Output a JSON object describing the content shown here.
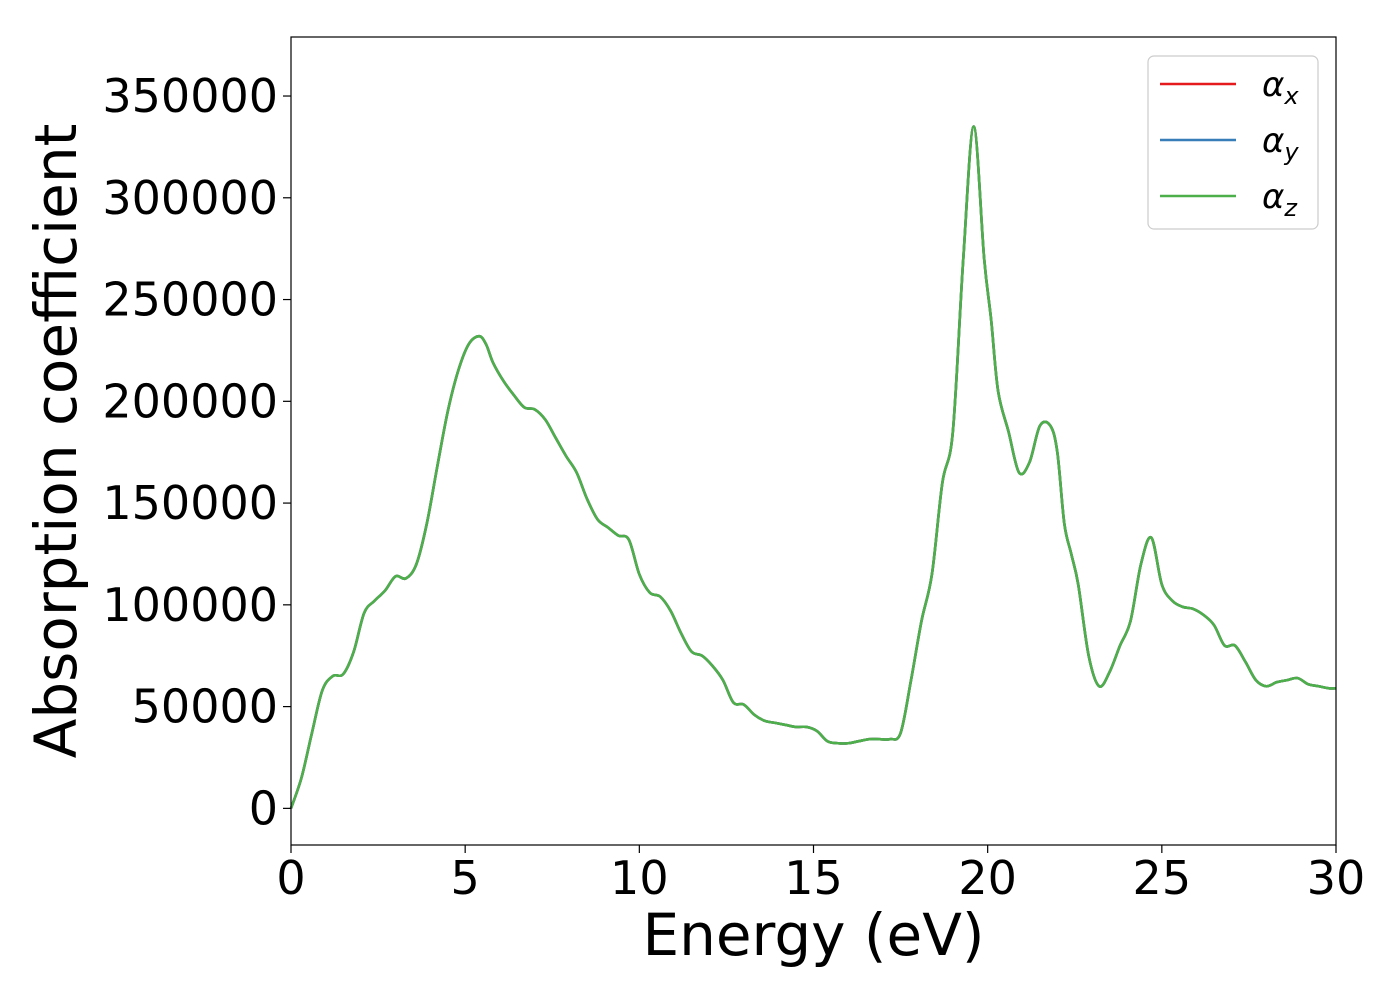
{
  "chart_data": {
    "type": "line",
    "title": "",
    "xlabel": "Energy (eV)",
    "ylabel": "Absorption coefficient",
    "xlim": [
      0,
      30
    ],
    "ylim": [
      -18000,
      379000
    ],
    "xticks": [
      "0",
      "5",
      "10",
      "15",
      "20",
      "25",
      "30"
    ],
    "yticks": [
      "0",
      "50000",
      "100000",
      "150000",
      "200000",
      "250000",
      "300000",
      "350000"
    ],
    "grid": false,
    "legend_position": "top-right",
    "legend": [
      {
        "symbol": "α",
        "subscript": "x",
        "color": "#e41a1c"
      },
      {
        "symbol": "α",
        "subscript": "y",
        "color": "#377eb8"
      },
      {
        "symbol": "α",
        "subscript": "z",
        "color": "#4daf4a"
      }
    ],
    "x": [
      0,
      0.3,
      0.6,
      0.9,
      1.2,
      1.5,
      1.8,
      2.1,
      2.4,
      2.7,
      3.0,
      3.3,
      3.6,
      3.9,
      4.2,
      4.5,
      4.8,
      5.1,
      5.4,
      5.6,
      5.8,
      6.1,
      6.4,
      6.7,
      7.0,
      7.3,
      7.6,
      7.9,
      8.2,
      8.5,
      8.8,
      9.1,
      9.4,
      9.7,
      10.0,
      10.3,
      10.6,
      10.9,
      11.2,
      11.5,
      11.8,
      12.1,
      12.4,
      12.7,
      13.0,
      13.3,
      13.6,
      13.9,
      14.2,
      14.5,
      14.8,
      15.1,
      15.4,
      15.7,
      16.0,
      16.3,
      16.6,
      16.9,
      17.2,
      17.5,
      17.8,
      18.1,
      18.4,
      18.7,
      19.0,
      19.3,
      19.6,
      19.9,
      20.1,
      20.3,
      20.6,
      20.9,
      21.2,
      21.5,
      21.8,
      22.0,
      22.2,
      22.4,
      22.6,
      22.9,
      23.2,
      23.5,
      23.8,
      24.1,
      24.4,
      24.7,
      25.0,
      25.3,
      25.6,
      25.9,
      26.2,
      26.5,
      26.8,
      27.1,
      27.4,
      27.7,
      28.0,
      28.3,
      28.6,
      28.9,
      29.2,
      29.5,
      29.8,
      30.0
    ],
    "series": [
      {
        "name": "α_x",
        "color": "#e41a1c",
        "values": [
          0,
          15000,
          37000,
          58000,
          65000,
          66000,
          77000,
          96000,
          102000,
          107000,
          114000,
          113000,
          120000,
          140000,
          168000,
          195000,
          215000,
          228000,
          232000,
          228000,
          219000,
          210000,
          203000,
          197000,
          196000,
          191000,
          182000,
          173000,
          165000,
          152000,
          142000,
          138000,
          134000,
          132000,
          115000,
          106000,
          104000,
          97000,
          86000,
          77000,
          75000,
          70000,
          63000,
          52000,
          51000,
          46000,
          43000,
          42000,
          41000,
          40000,
          40000,
          38000,
          33000,
          32000,
          32000,
          33000,
          34000,
          34000,
          34000,
          37000,
          63000,
          92000,
          115000,
          160000,
          185000,
          270000,
          335000,
          270000,
          240000,
          205000,
          185000,
          165000,
          170000,
          188000,
          188000,
          175000,
          140000,
          125000,
          110000,
          75000,
          60000,
          67000,
          80000,
          92000,
          120000,
          133000,
          110000,
          102000,
          99000,
          98000,
          95000,
          90000,
          80000,
          80000,
          72000,
          63000,
          60000,
          62000,
          63000,
          64000,
          61000,
          60000,
          59000,
          59000
        ]
      },
      {
        "name": "α_y",
        "color": "#377eb8",
        "values": [
          0,
          15000,
          37000,
          58000,
          65000,
          66000,
          77000,
          96000,
          102000,
          107000,
          114000,
          113000,
          120000,
          140000,
          168000,
          195000,
          215000,
          228000,
          232000,
          228000,
          219000,
          210000,
          203000,
          197000,
          196000,
          191000,
          182000,
          173000,
          165000,
          152000,
          142000,
          138000,
          134000,
          132000,
          115000,
          106000,
          104000,
          97000,
          86000,
          77000,
          75000,
          70000,
          63000,
          52000,
          51000,
          46000,
          43000,
          42000,
          41000,
          40000,
          40000,
          38000,
          33000,
          32000,
          32000,
          33000,
          34000,
          34000,
          34000,
          37000,
          63000,
          92000,
          115000,
          160000,
          185000,
          270000,
          335000,
          270000,
          240000,
          205000,
          185000,
          165000,
          170000,
          188000,
          188000,
          175000,
          140000,
          125000,
          110000,
          75000,
          60000,
          67000,
          80000,
          92000,
          120000,
          133000,
          110000,
          102000,
          99000,
          98000,
          95000,
          90000,
          80000,
          80000,
          72000,
          63000,
          60000,
          62000,
          63000,
          64000,
          61000,
          60000,
          59000,
          59000
        ]
      },
      {
        "name": "α_z",
        "color": "#4daf4a",
        "values": [
          0,
          15000,
          37000,
          58000,
          65000,
          66000,
          77000,
          96000,
          102000,
          107000,
          114000,
          113000,
          120000,
          140000,
          168000,
          195000,
          215000,
          228000,
          232000,
          228000,
          219000,
          210000,
          203000,
          197000,
          196000,
          191000,
          182000,
          173000,
          165000,
          152000,
          142000,
          138000,
          134000,
          132000,
          115000,
          106000,
          104000,
          97000,
          86000,
          77000,
          75000,
          70000,
          63000,
          52000,
          51000,
          46000,
          43000,
          42000,
          41000,
          40000,
          40000,
          38000,
          33000,
          32000,
          32000,
          33000,
          34000,
          34000,
          34000,
          37000,
          63000,
          92000,
          115000,
          160000,
          185000,
          270000,
          335000,
          270000,
          240000,
          205000,
          185000,
          165000,
          170000,
          188000,
          188000,
          175000,
          140000,
          125000,
          110000,
          75000,
          60000,
          67000,
          80000,
          92000,
          120000,
          133000,
          110000,
          102000,
          99000,
          98000,
          95000,
          90000,
          80000,
          80000,
          72000,
          63000,
          60000,
          62000,
          63000,
          64000,
          61000,
          60000,
          59000,
          59000
        ]
      }
    ]
  }
}
